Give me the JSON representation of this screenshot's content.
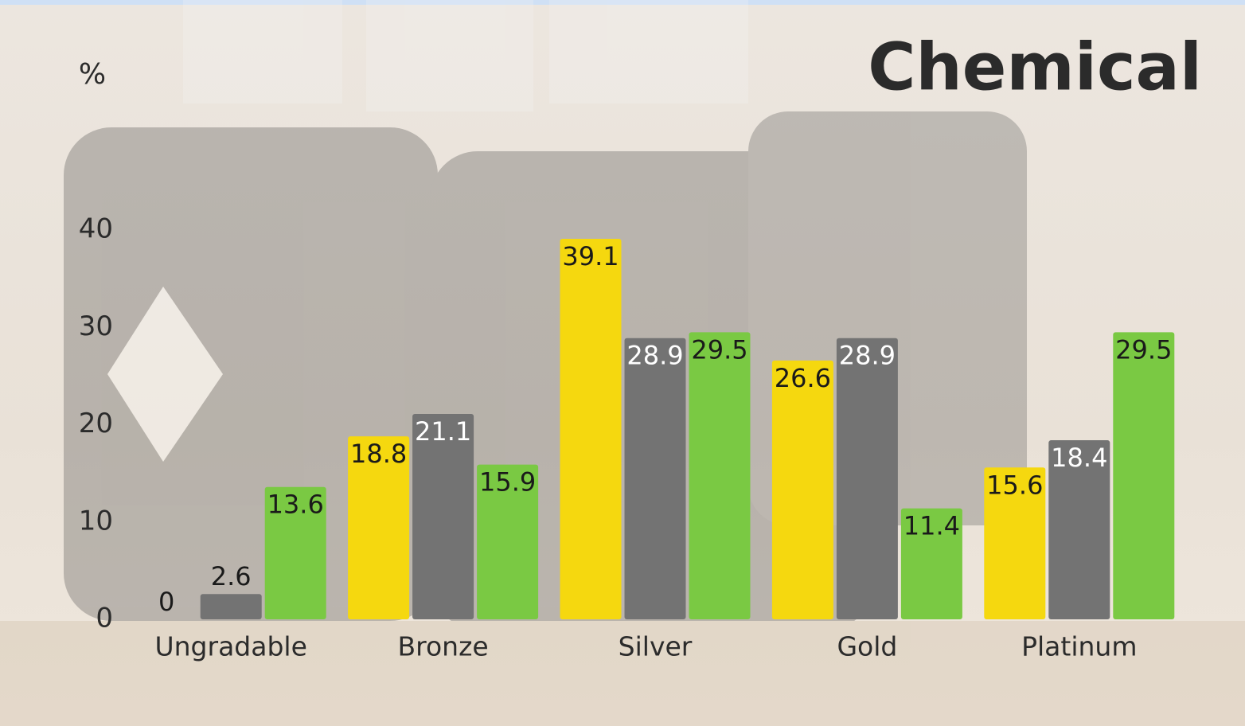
{
  "chart_data": {
    "type": "bar",
    "title": "Chemical",
    "y_label": "%",
    "categories": [
      "Ungradable",
      "Bronze",
      "Silver",
      "Gold",
      "Platinum"
    ],
    "series": [
      {
        "color": "#f5d80f",
        "values": [
          0,
          18.8,
          39.1,
          26.6,
          15.6
        ]
      },
      {
        "color": "#737373",
        "values": [
          2.6,
          21.1,
          28.9,
          28.9,
          18.4
        ]
      },
      {
        "color": "#7ac943",
        "values": [
          13.6,
          15.9,
          29.5,
          11.4,
          29.5
        ]
      }
    ],
    "ylim": [
      0,
      40
    ],
    "yticks": [
      0,
      10,
      20,
      30,
      40
    ],
    "grid": false
  }
}
